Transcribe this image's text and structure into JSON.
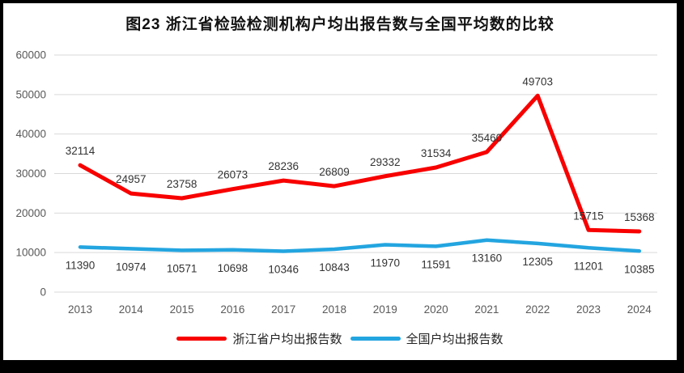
{
  "chart_data": {
    "type": "line",
    "title": "图23  浙江省检验检测机构户均出报告数与全国平均数的比较",
    "categories": [
      "2013",
      "2014",
      "2015",
      "2016",
      "2017",
      "2018",
      "2019",
      "2020",
      "2021",
      "2022",
      "2023",
      "2024"
    ],
    "series": [
      {
        "name": "浙江省户均出报告数",
        "color": "#f80000",
        "values": [
          32114,
          24957,
          23758,
          26073,
          28236,
          26809,
          29332,
          31534,
          35460,
          49703,
          15715,
          15368
        ]
      },
      {
        "name": "全国户均出报告数",
        "color": "#23a5e0",
        "values": [
          11390,
          10974,
          10571,
          10698,
          10346,
          10843,
          11970,
          11591,
          13160,
          12305,
          11201,
          10385
        ]
      }
    ],
    "ylim": [
      0,
      60000
    ],
    "ytick_step": 10000,
    "yticks": [
      "0",
      "10000",
      "20000",
      "30000",
      "40000",
      "50000",
      "60000"
    ],
    "grid": true,
    "data_labels": true,
    "legend_position": "bottom",
    "colors": {
      "gridline": "#d9d9d9",
      "axis_text": "#595959",
      "data_label_text": "#333333",
      "frame_border": "#000000"
    }
  }
}
